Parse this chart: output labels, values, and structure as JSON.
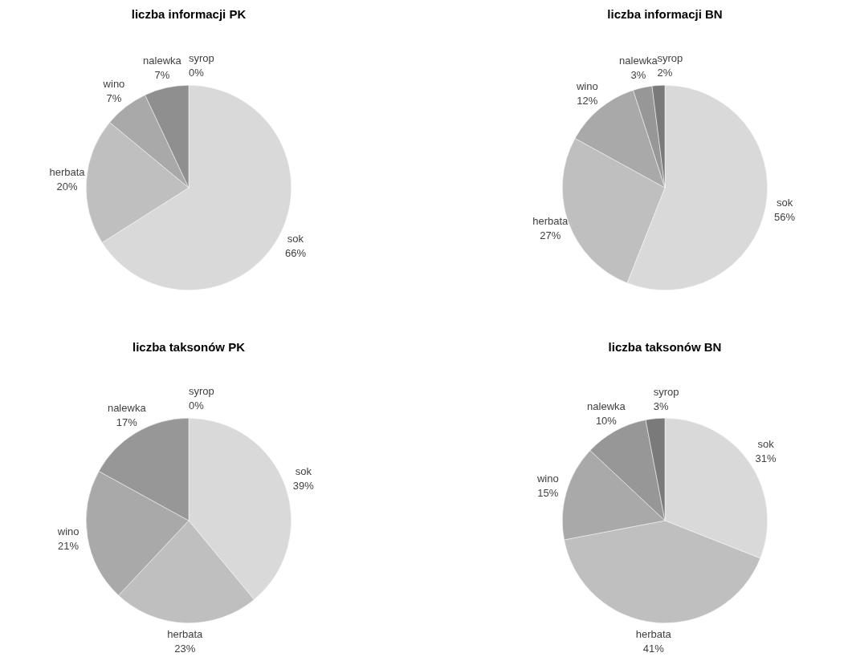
{
  "chart_data": [
    {
      "type": "pie",
      "title": "liczba informacji PK",
      "categories": [
        "sok",
        "herbata",
        "wino",
        "nalewka",
        "syrop"
      ],
      "values": [
        66,
        20,
        7,
        7,
        0
      ],
      "value_labels": [
        "66%",
        "20%",
        "7%",
        "7%",
        "0%"
      ],
      "colors": [
        "#d9d9d9",
        "#bfbfbf",
        "#a9a9a9",
        "#8f8f8f",
        "#7a7a7a"
      ]
    },
    {
      "type": "pie",
      "title": "liczba informacji BN",
      "categories": [
        "sok",
        "herbata",
        "wino",
        "nalewka",
        "syrop"
      ],
      "values": [
        56,
        27,
        12,
        3,
        2
      ],
      "value_labels": [
        "56%",
        "27%",
        "12%",
        "3%",
        "2%"
      ],
      "colors": [
        "#d9d9d9",
        "#bfbfbf",
        "#a9a9a9",
        "#979797",
        "#7a7a7a"
      ]
    },
    {
      "type": "pie",
      "title": "liczba taksonów PK",
      "categories": [
        "sok",
        "herbata",
        "wino",
        "nalewka",
        "syrop"
      ],
      "values": [
        39,
        23,
        21,
        17,
        0
      ],
      "value_labels": [
        "39%",
        "23%",
        "21%",
        "17%",
        "0%"
      ],
      "colors": [
        "#d9d9d9",
        "#bfbfbf",
        "#a9a9a9",
        "#979797",
        "#7a7a7a"
      ]
    },
    {
      "type": "pie",
      "title": "liczba taksonów BN",
      "categories": [
        "sok",
        "herbata",
        "wino",
        "nalewka",
        "syrop"
      ],
      "values": [
        31,
        41,
        15,
        10,
        3
      ],
      "value_labels": [
        "31%",
        "41%",
        "15%",
        "10%",
        "3%"
      ],
      "colors": [
        "#d9d9d9",
        "#bfbfbf",
        "#a9a9a9",
        "#979797",
        "#7a7a7a"
      ]
    }
  ]
}
